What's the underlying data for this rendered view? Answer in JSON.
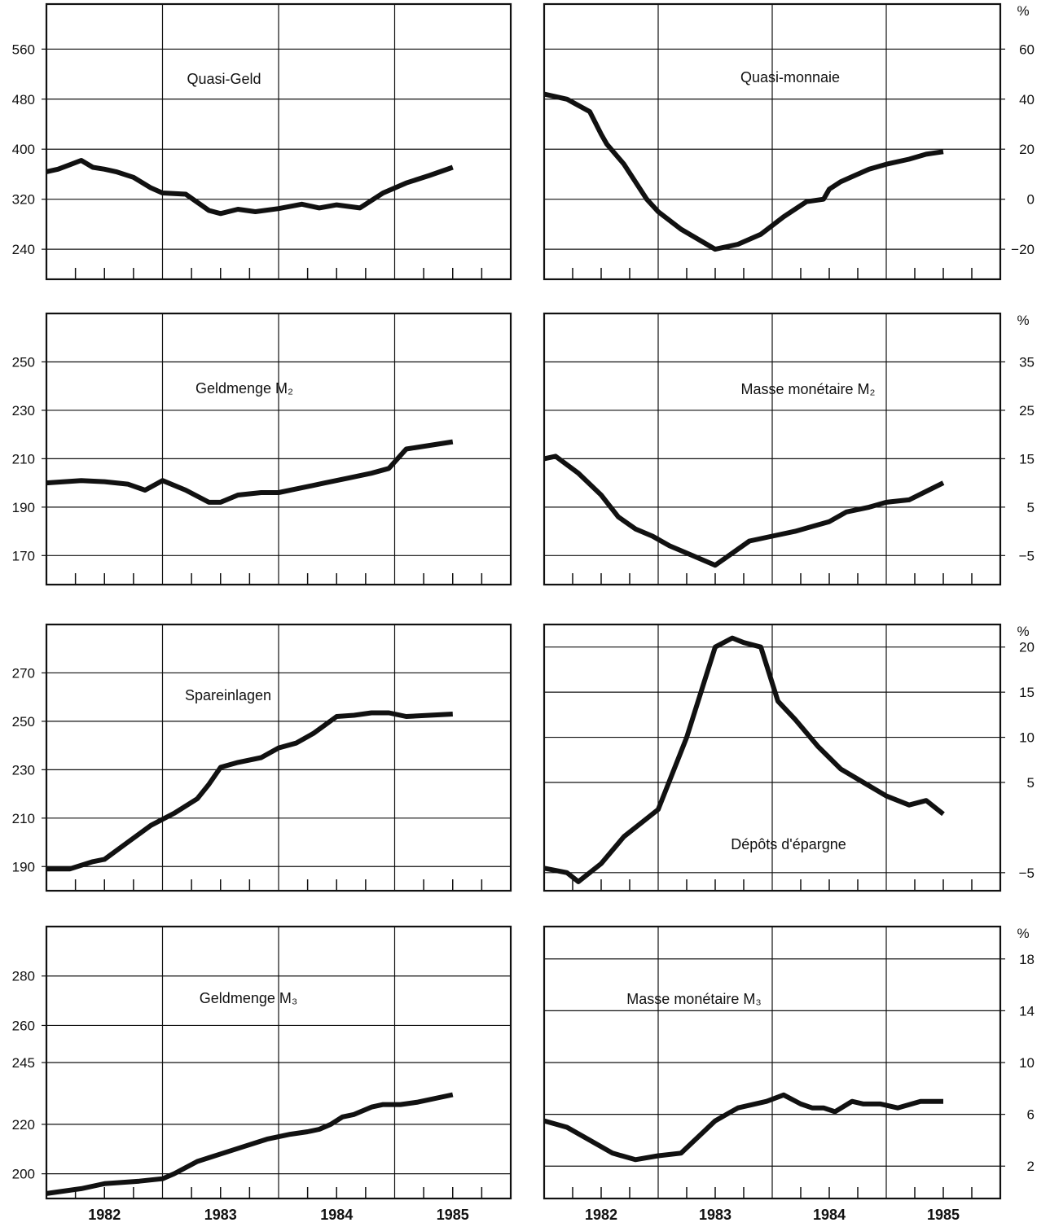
{
  "chart_data": [
    {
      "type": "line",
      "title": "Quasi-Geld",
      "axis_side": "left",
      "unit": "",
      "x_categories": [
        "1982",
        "1983",
        "1984",
        "1985"
      ],
      "y_ticks": [
        240,
        320,
        400,
        480,
        560
      ],
      "ylim": [
        192,
        632
      ],
      "series": [
        {
          "x": [
            1981.5,
            1981.6,
            1981.7,
            1981.8,
            1981.9,
            1982.0,
            1982.1,
            1982.25,
            1982.4,
            1982.5,
            1982.7,
            1982.9,
            1983.0,
            1983.15,
            1983.3,
            1983.5,
            1983.7,
            1983.85,
            1984.0,
            1984.2,
            1984.4,
            1984.6,
            1984.8,
            1985.0
          ],
          "y": [
            364,
            368,
            375,
            382,
            371,
            368,
            364,
            355,
            338,
            330,
            328,
            302,
            297,
            304,
            300,
            305,
            312,
            306,
            311,
            306,
            330,
            346,
            358,
            371
          ]
        }
      ]
    },
    {
      "type": "line",
      "title": "Quasi-monnaie",
      "axis_side": "right",
      "unit": "%",
      "x_categories": [
        "1982",
        "1983",
        "1984",
        "1985"
      ],
      "y_ticks": [
        -20,
        0,
        20,
        40,
        60
      ],
      "ylim": [
        -32,
        78
      ],
      "series": [
        {
          "x": [
            1981.5,
            1981.7,
            1981.9,
            1982.0,
            1982.05,
            1982.2,
            1982.4,
            1982.5,
            1982.7,
            1983.0,
            1983.2,
            1983.4,
            1983.6,
            1983.8,
            1983.95,
            1984.0,
            1984.1,
            1984.2,
            1984.35,
            1984.5,
            1984.7,
            1984.85,
            1985.0
          ],
          "y": [
            42,
            40,
            35,
            26,
            22,
            14,
            0,
            -5,
            -12,
            -20,
            -18,
            -14,
            -7,
            -1,
            0,
            4,
            7,
            9,
            12,
            14,
            16,
            18,
            19
          ]
        }
      ]
    },
    {
      "type": "line",
      "title": "Geldmenge M₂",
      "axis_side": "left",
      "unit": "",
      "x_categories": [
        "1982",
        "1983",
        "1984",
        "1985"
      ],
      "y_ticks": [
        170,
        190,
        210,
        230,
        250
      ],
      "ylim": [
        158,
        270
      ],
      "series": [
        {
          "x": [
            1981.5,
            1981.8,
            1982.0,
            1982.2,
            1982.35,
            1982.5,
            1982.7,
            1982.9,
            1983.0,
            1983.15,
            1983.35,
            1983.5,
            1983.7,
            1983.9,
            1984.1,
            1984.3,
            1984.45,
            1984.6,
            1985.0
          ],
          "y": [
            200,
            201,
            200.5,
            199.5,
            197,
            201,
            197,
            192,
            192,
            195,
            196,
            196,
            198,
            200,
            202,
            204,
            206,
            214,
            217
          ]
        }
      ]
    },
    {
      "type": "line",
      "title": "Masse monétaire M₂",
      "axis_side": "right",
      "unit": "%",
      "x_categories": [
        "1982",
        "1983",
        "1984",
        "1985"
      ],
      "y_ticks": [
        -5,
        5,
        15,
        25,
        35
      ],
      "ylim": [
        -11,
        45
      ],
      "series": [
        {
          "x": [
            1981.5,
            1981.6,
            1981.8,
            1982.0,
            1982.15,
            1982.3,
            1982.45,
            1982.6,
            1982.8,
            1983.0,
            1983.3,
            1983.5,
            1983.7,
            1983.85,
            1984.0,
            1984.15,
            1984.35,
            1984.5,
            1984.7,
            1985.0
          ],
          "y": [
            15,
            15.5,
            12,
            7.5,
            3,
            0.5,
            -1,
            -3,
            -5,
            -7,
            -2,
            -1,
            0,
            1,
            2,
            4,
            5,
            6,
            6.5,
            10
          ]
        }
      ]
    },
    {
      "type": "line",
      "title": "Spareinlagen",
      "axis_side": "left",
      "unit": "",
      "x_categories": [
        "1982",
        "1983",
        "1984",
        "1985"
      ],
      "y_ticks": [
        190,
        210,
        230,
        250,
        270
      ],
      "ylim": [
        180,
        290
      ],
      "series": [
        {
          "x": [
            1981.5,
            1981.7,
            1981.9,
            1982.0,
            1982.2,
            1982.4,
            1982.6,
            1982.8,
            1982.9,
            1983.0,
            1983.15,
            1983.35,
            1983.5,
            1983.65,
            1983.8,
            1984.0,
            1984.15,
            1984.3,
            1984.45,
            1984.6,
            1985.0
          ],
          "y": [
            189,
            189,
            192,
            193,
            200,
            207,
            212,
            218,
            224,
            231,
            233,
            235,
            239,
            241,
            245,
            252,
            252.5,
            253.5,
            253.5,
            252,
            253
          ]
        }
      ]
    },
    {
      "type": "line",
      "title": "Dépôts d'épargne",
      "axis_side": "right",
      "unit": "%",
      "x_categories": [
        "1982",
        "1983",
        "1984",
        "1985"
      ],
      "y_ticks": [
        -5,
        5,
        10,
        15,
        20
      ],
      "ylim": [
        -7,
        22.5
      ],
      "series": [
        {
          "x": [
            1981.5,
            1981.7,
            1981.8,
            1982.0,
            1982.2,
            1982.4,
            1982.5,
            1982.75,
            1983.0,
            1983.15,
            1983.25,
            1983.4,
            1983.55,
            1983.7,
            1983.9,
            1984.1,
            1984.3,
            1984.5,
            1984.7,
            1984.85,
            1985.0
          ],
          "y": [
            -4.5,
            -5,
            -6,
            -4,
            -1,
            1,
            2,
            10,
            20,
            21,
            20.5,
            20,
            14,
            12,
            9,
            6.5,
            5,
            3.5,
            2.5,
            3,
            1.5
          ]
        }
      ]
    },
    {
      "type": "line",
      "title": "Geldmenge M₃",
      "axis_side": "left",
      "unit": "",
      "x_categories": [
        "1982",
        "1983",
        "1984",
        "1985"
      ],
      "y_ticks": [
        200,
        220,
        245,
        260,
        280
      ],
      "ylim": [
        190,
        300
      ],
      "series": [
        {
          "x": [
            1981.5,
            1981.8,
            1982.0,
            1982.3,
            1982.5,
            1982.6,
            1982.8,
            1983.0,
            1983.2,
            1983.4,
            1983.6,
            1983.75,
            1983.85,
            1983.95,
            1984.05,
            1984.15,
            1984.3,
            1984.4,
            1984.55,
            1984.7,
            1985.0
          ],
          "y": [
            192,
            194,
            196,
            197,
            198,
            200,
            205,
            208,
            211,
            214,
            216,
            217,
            218,
            220,
            223,
            224,
            227,
            228,
            228,
            229,
            232
          ]
        }
      ]
    },
    {
      "type": "line",
      "title": "Masse monétaire M₃",
      "axis_side": "right",
      "unit": "%",
      "x_categories": [
        "1982",
        "1983",
        "1984",
        "1985"
      ],
      "y_ticks": [
        2,
        6,
        10,
        14,
        18
      ],
      "ylim": [
        -0.5,
        20.5
      ],
      "series": [
        {
          "x": [
            1981.5,
            1981.7,
            1981.9,
            1982.1,
            1982.3,
            1982.5,
            1982.7,
            1983.0,
            1983.2,
            1983.45,
            1983.6,
            1983.75,
            1983.85,
            1983.95,
            1984.05,
            1984.2,
            1984.3,
            1984.45,
            1984.6,
            1984.8,
            1985.0
          ],
          "y": [
            5.5,
            5,
            4,
            3,
            2.5,
            2.8,
            3,
            5.5,
            6.5,
            7,
            7.5,
            6.8,
            6.5,
            6.5,
            6.2,
            7,
            6.8,
            6.8,
            6.5,
            7,
            7
          ]
        }
      ]
    }
  ]
}
